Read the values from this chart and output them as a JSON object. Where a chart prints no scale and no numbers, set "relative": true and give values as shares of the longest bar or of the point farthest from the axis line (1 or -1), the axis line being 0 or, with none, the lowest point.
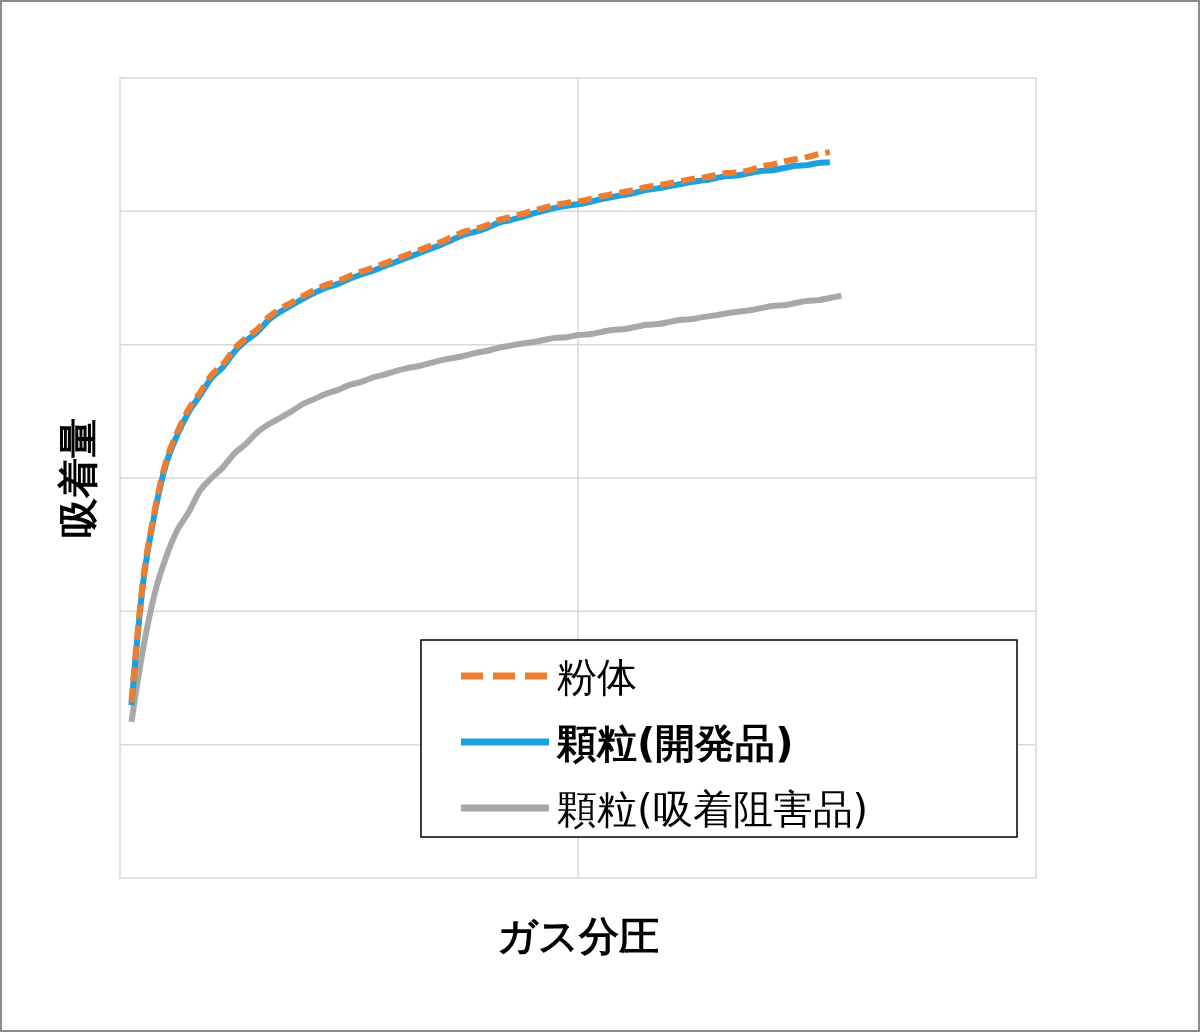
{
  "chart_data": {
    "type": "line",
    "xlabel": "ガス分圧",
    "ylabel": "吸着量",
    "relative": true,
    "grid": true,
    "legend": "bottom right",
    "categories": [
      null,
      null,
      null,
      null,
      null,
      null,
      null,
      null,
      null,
      null,
      null,
      null,
      null,
      null,
      null,
      null,
      null,
      null,
      null,
      null,
      null,
      null,
      null,
      null,
      null,
      null,
      null,
      null,
      null,
      null,
      null,
      null,
      null,
      null,
      null,
      null,
      null,
      null,
      null,
      null,
      null,
      null,
      null,
      null,
      null,
      null,
      null,
      null,
      null,
      null,
      null,
      null,
      null,
      null,
      null,
      null,
      null,
      null,
      null,
      null,
      null,
      null,
      null,
      null,
      null,
      null,
      null,
      null,
      null,
      null,
      null,
      null,
      null,
      null,
      null,
      null,
      null,
      null,
      null,
      null,
      null
    ],
    "series": [
      {
        "name": "粉体",
        "color": "#ed7d31",
        "line_style": "dashed",
        "values": [
          null,
          0.242,
          0.408,
          0.504,
          0.573,
          0.614,
          0.646,
          0.669,
          0.693,
          0.708,
          0.729,
          0.744,
          0.756,
          0.773,
          0.784,
          0.793,
          0.802,
          0.81,
          0.817,
          0.822,
          0.829,
          0.835,
          0.84,
          0.846,
          0.852,
          0.858,
          0.864,
          0.87,
          0.876,
          0.883,
          0.89,
          0.894,
          0.899,
          0.906,
          0.91,
          0.914,
          0.919,
          0.923,
          0.927,
          0.93,
          0.932,
          0.935,
          0.939,
          0.942,
          0.945,
          0.948,
          0.952,
          0.954,
          0.957,
          0.96,
          0.963,
          0.965,
          0.968,
          0.971,
          0.972,
          0.975,
          0.98,
          0.983,
          0.987,
          0.99,
          0.993,
          0.997,
          1.0,
          null,
          null,
          null,
          null,
          null,
          null,
          null,
          null,
          null,
          null,
          null,
          null,
          null,
          null,
          null,
          null,
          null,
          null
        ]
      },
      {
        "name": "顆粒(開発品)",
        "color": "#1ba1e2",
        "line_style": "solid",
        "values": [
          null,
          0.238,
          0.404,
          0.5,
          0.569,
          0.61,
          0.642,
          0.665,
          0.689,
          0.704,
          0.725,
          0.74,
          0.752,
          0.769,
          0.78,
          0.789,
          0.798,
          0.806,
          0.813,
          0.818,
          0.825,
          0.831,
          0.836,
          0.842,
          0.848,
          0.854,
          0.86,
          0.866,
          0.872,
          0.879,
          0.886,
          0.89,
          0.895,
          0.902,
          0.906,
          0.91,
          0.915,
          0.919,
          0.923,
          0.926,
          0.928,
          0.931,
          0.935,
          0.938,
          0.941,
          0.944,
          0.948,
          0.95,
          0.953,
          0.956,
          0.959,
          0.961,
          0.964,
          0.967,
          0.968,
          0.971,
          0.974,
          0.975,
          0.978,
          0.981,
          0.982,
          0.985,
          0.986,
          null,
          null,
          null,
          null,
          null,
          null,
          null,
          null,
          null,
          null,
          null,
          null,
          null,
          null,
          null,
          null,
          null,
          null
        ]
      },
      {
        "name": "顆粒(吸着阻害品)",
        "color": "#a8a7a9",
        "line_style": "solid",
        "values": [
          null,
          0.215,
          0.314,
          0.39,
          0.441,
          0.479,
          0.504,
          0.534,
          0.551,
          0.566,
          0.585,
          0.598,
          0.614,
          0.625,
          0.634,
          0.643,
          0.653,
          0.66,
          0.667,
          0.672,
          0.679,
          0.683,
          0.689,
          0.693,
          0.698,
          0.702,
          0.705,
          0.709,
          0.713,
          0.716,
          0.719,
          0.723,
          0.726,
          0.73,
          0.733,
          0.736,
          0.738,
          0.741,
          0.744,
          0.745,
          0.748,
          0.749,
          0.752,
          0.755,
          0.756,
          0.759,
          0.762,
          0.763,
          0.766,
          0.769,
          0.77,
          0.773,
          0.775,
          0.778,
          0.78,
          0.782,
          0.785,
          0.788,
          0.789,
          0.792,
          0.795,
          0.796,
          0.799,
          0.802,
          null,
          null,
          null,
          null,
          null,
          null,
          null,
          null,
          null,
          null,
          null,
          null,
          null,
          null,
          null,
          null,
          null
        ]
      }
    ]
  }
}
